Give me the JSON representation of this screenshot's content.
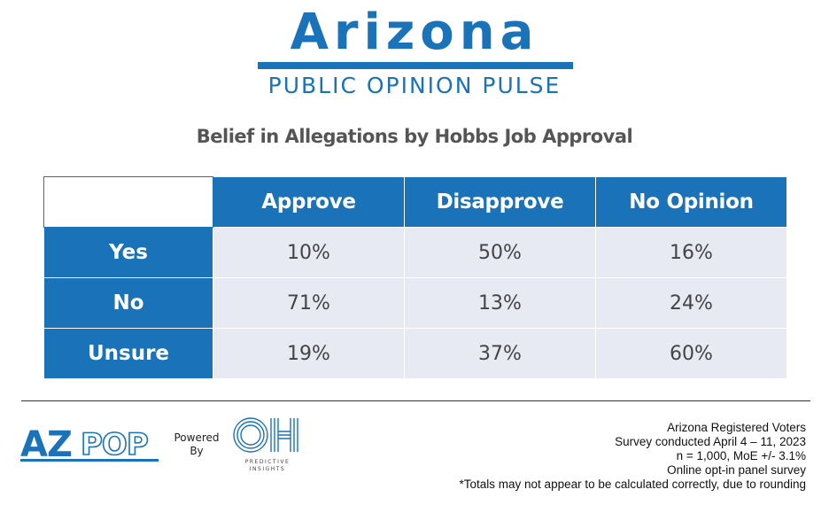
{
  "header": {
    "brand": "Arizona",
    "subtitle": "PUBLIC OPINION PULSE",
    "brand_color": "#1a73b8"
  },
  "chart_data": {
    "type": "table",
    "title": "Belief in Allegations by Hobbs Job Approval",
    "columns": [
      "Approve",
      "Disapprove",
      "No Opinion"
    ],
    "rows": [
      {
        "label": "Yes",
        "values": [
          "10%",
          "50%",
          "16%"
        ]
      },
      {
        "label": "No",
        "values": [
          "71%",
          "13%",
          "24%"
        ]
      },
      {
        "label": "Unsure",
        "values": [
          "19%",
          "37%",
          "60%"
        ]
      }
    ],
    "header_color": "#1a73b8",
    "cell_color": "#e8eaf3"
  },
  "footer": {
    "azpop_logo": "AZPOP",
    "powered_line1": "Powered",
    "powered_line2": "By",
    "oh_logo": "OH",
    "oh_caption_line1": "PREDICTIVE",
    "oh_caption_line2": "INSIGHTS",
    "notes": [
      "Arizona Registered Voters",
      "Survey conducted April 4 – 11, 2023",
      "n = 1,000, MoE +/- 3.1%",
      "Online opt-in panel survey",
      "*Totals may not appear to be calculated correctly, due to rounding"
    ]
  }
}
